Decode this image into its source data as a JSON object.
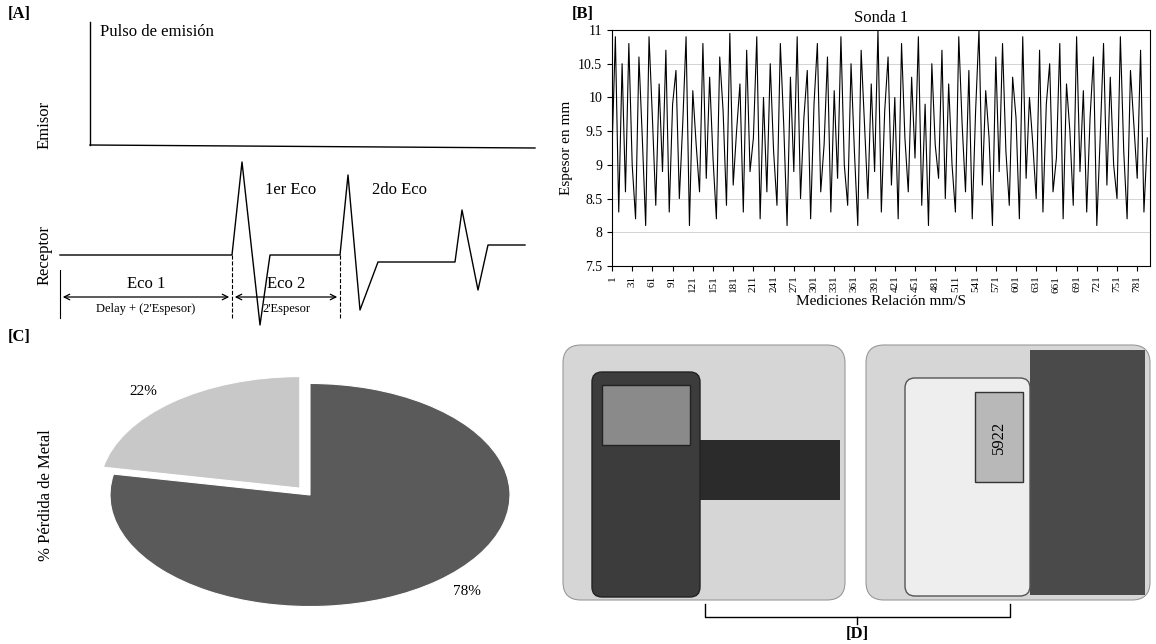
{
  "panel_labels": [
    "[A]",
    "[B]",
    "[C]",
    "[D]"
  ],
  "diagram": {
    "emission_label": "Pulso de emisión",
    "rows": [
      "Emisor",
      "Receptor"
    ],
    "echo_labels": [
      "1er Eco",
      "2do Eco"
    ],
    "intervals": [
      {
        "label": "Eco 1",
        "detail": "Delay + (2'Espesor)"
      },
      {
        "label": "Eco 2",
        "detail": "2'Espesor"
      }
    ]
  },
  "chart_data": [
    {
      "type": "line",
      "title": "Sonda 1",
      "xlabel": "Mediciones Relación mm/S",
      "ylabel": "Espesor en mm",
      "color": "#000000",
      "grid": "y",
      "xlim": [
        1,
        800
      ],
      "xticks": [
        1,
        31,
        61,
        91,
        121,
        151,
        181,
        211,
        241,
        271,
        301,
        331,
        361,
        391,
        421,
        451,
        481,
        511,
        541,
        571,
        601,
        631,
        661,
        691,
        721,
        751,
        781
      ],
      "ylim": [
        7.5,
        11
      ],
      "yticks": [
        7.5,
        8,
        8.5,
        9,
        9.5,
        10,
        10.5,
        11
      ],
      "x": [
        1,
        6,
        11,
        16,
        21,
        26,
        31,
        36,
        41,
        46,
        51,
        56,
        61,
        66,
        71,
        76,
        81,
        86,
        91,
        96,
        101,
        106,
        111,
        116,
        121,
        126,
        131,
        136,
        141,
        146,
        151,
        156,
        161,
        166,
        171,
        176,
        181,
        186,
        191,
        196,
        201,
        206,
        211,
        216,
        221,
        226,
        231,
        236,
        241,
        246,
        251,
        256,
        261,
        266,
        271,
        276,
        281,
        286,
        291,
        296,
        301,
        306,
        311,
        316,
        321,
        326,
        331,
        336,
        341,
        346,
        351,
        356,
        361,
        366,
        371,
        376,
        381,
        386,
        391,
        396,
        401,
        406,
        411,
        416,
        421,
        426,
        431,
        436,
        441,
        446,
        451,
        456,
        461,
        466,
        471,
        476,
        481,
        486,
        491,
        496,
        501,
        506,
        511,
        516,
        521,
        526,
        531,
        536,
        541,
        546,
        551,
        556,
        561,
        566,
        571,
        576,
        581,
        586,
        591,
        596,
        601,
        606,
        611,
        616,
        621,
        626,
        631,
        636,
        641,
        646,
        651,
        656,
        661,
        666,
        671,
        676,
        681,
        686,
        691,
        696,
        701,
        706,
        711,
        716,
        721,
        726,
        731,
        736,
        741,
        746,
        751,
        756,
        761,
        766,
        771,
        776,
        781,
        786,
        791,
        796
      ],
      "values": [
        9.2,
        10.9,
        8.3,
        10.5,
        8.6,
        10.8,
        9.0,
        8.2,
        10.6,
        9.4,
        8.1,
        10.9,
        9.7,
        8.4,
        10.2,
        8.9,
        10.7,
        8.3,
        9.9,
        10.4,
        8.5,
        9.6,
        10.9,
        8.1,
        10.1,
        9.3,
        8.6,
        10.8,
        8.8,
        10.3,
        9.1,
        8.2,
        10.6,
        9.8,
        8.4,
        10.95,
        8.7,
        9.5,
        10.2,
        8.3,
        10.7,
        8.9,
        9.4,
        10.9,
        8.2,
        10.0,
        8.6,
        10.5,
        9.2,
        8.4,
        10.8,
        9.6,
        8.1,
        10.3,
        8.9,
        10.9,
        8.5,
        9.7,
        10.4,
        8.2,
        9.9,
        10.8,
        8.6,
        9.3,
        10.6,
        8.3,
        10.1,
        8.8,
        10.9,
        9.0,
        8.4,
        10.5,
        9.2,
        8.1,
        10.7,
        9.6,
        8.5,
        10.2,
        8.9,
        11.0,
        8.3,
        9.8,
        10.6,
        8.7,
        10.0,
        8.2,
        10.8,
        9.4,
        8.6,
        10.3,
        9.1,
        10.9,
        8.4,
        9.9,
        8.1,
        10.5,
        9.3,
        8.8,
        10.7,
        8.5,
        10.2,
        9.0,
        8.3,
        10.9,
        9.6,
        8.6,
        10.4,
        8.2,
        9.8,
        11.0,
        8.7,
        10.1,
        9.4,
        8.1,
        10.6,
        8.9,
        10.8,
        9.2,
        8.4,
        10.3,
        9.7,
        8.2,
        10.9,
        8.8,
        10.0,
        9.3,
        8.5,
        10.7,
        8.3,
        9.9,
        10.5,
        8.6,
        9.1,
        10.8,
        8.2,
        10.2,
        9.5,
        8.4,
        10.9,
        8.9,
        10.1,
        8.3,
        9.7,
        10.6,
        8.1,
        9.4,
        10.8,
        8.7,
        10.3,
        9.0,
        8.5,
        10.9,
        9.2,
        8.2,
        10.4,
        9.6,
        8.8,
        10.7,
        8.3,
        9.4
      ]
    },
    {
      "type": "pie",
      "ylabel": "% Pérdida de Metal",
      "values": [
        22,
        78
      ],
      "value_labels": [
        "22%",
        "78%"
      ],
      "colors": [
        "#c8c8c8",
        "#5a5a5a"
      ]
    }
  ],
  "photos": {
    "display_reading": "5922"
  }
}
